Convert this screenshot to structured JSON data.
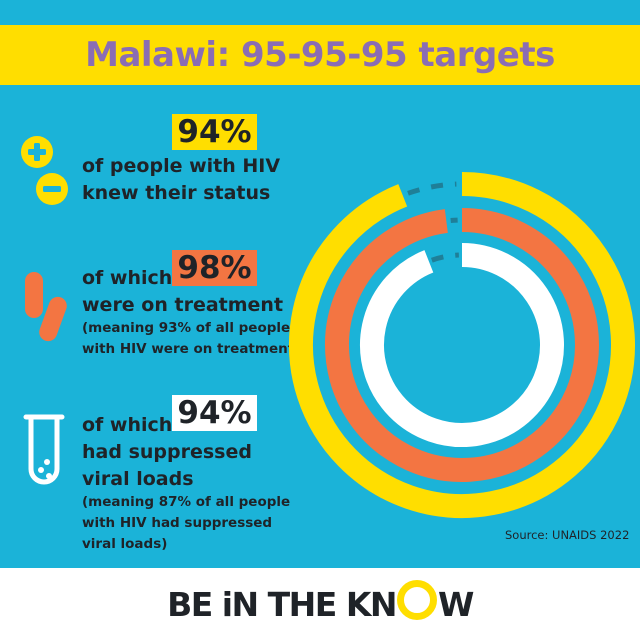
{
  "title": "Malawi: 95-95-95 targets",
  "colors": {
    "background": "#1bb3d8",
    "yellow": "#ffde00",
    "orange": "#f37542",
    "white": "#ffffff",
    "title": "#8a6db4",
    "gap": "#1f7f98"
  },
  "sections": [
    {
      "icon": "plus-minus-icon",
      "percent": "94%",
      "lines": [
        "of people with HIV",
        "knew their status"
      ],
      "note": []
    },
    {
      "icon": "pills-icon",
      "percent": "98%",
      "lines": [
        "of which",
        "were on treatment"
      ],
      "note": [
        "(meaning 93% of all people",
        "with HIV were on treatment)"
      ]
    },
    {
      "icon": "test-tube-icon",
      "percent": "94%",
      "lines": [
        "of which",
        "had suppressed",
        "viral loads"
      ],
      "note": [
        "(meaning 87% of all people",
        "with HIV had suppressed",
        "viral loads)"
      ]
    }
  ],
  "source": "Source: UNAIDS 2022",
  "logo": {
    "text": "BE IN THE KNOW"
  },
  "chart_data": {
    "type": "radial-bar",
    "categories": [
      "knew their status",
      "on treatment",
      "suppressed viral loads"
    ],
    "values": [
      94,
      98,
      94
    ],
    "max": 100,
    "colors": [
      "#ffde00",
      "#f37542",
      "#ffffff"
    ],
    "remainder_style": "dashed"
  }
}
